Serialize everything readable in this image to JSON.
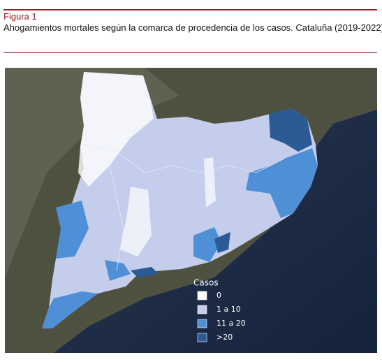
{
  "figure": {
    "label": "Figura 1",
    "title": "Ahogamientos mortales según la comarca de procedencia de los casos. Cataluña (2019-2022)."
  },
  "legend": {
    "title": "Casos",
    "items": [
      {
        "label": "0",
        "color": "#ffffff"
      },
      {
        "label": "1 a 10",
        "color": "#c5cdec"
      },
      {
        "label": "11 a 20",
        "color": "#4f8fd6"
      },
      {
        "label": ">20",
        "color": "#2c5a94"
      }
    ]
  }
}
